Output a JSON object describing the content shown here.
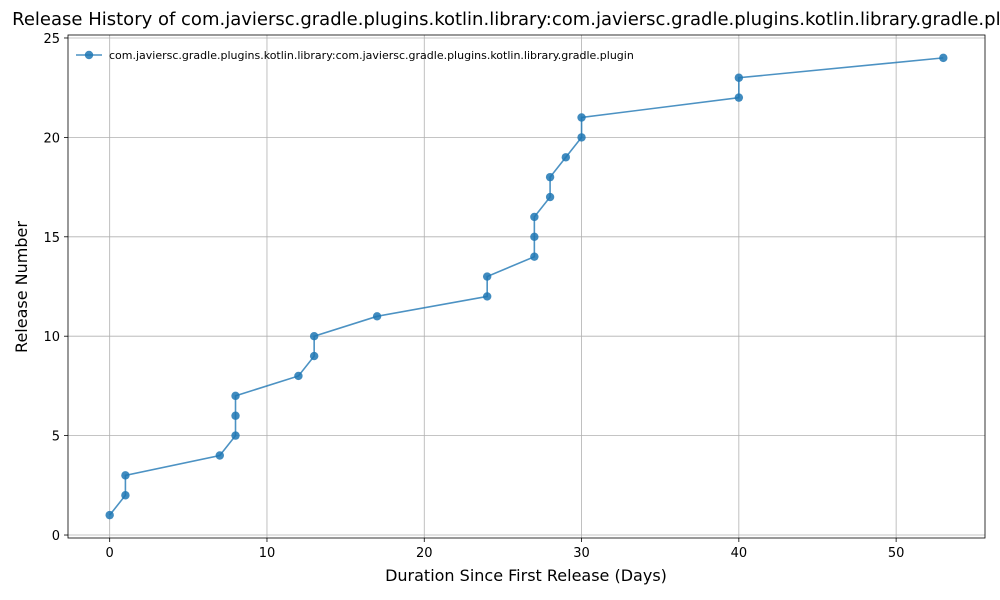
{
  "chart_data": {
    "type": "line",
    "title": "Release History of com.javiersc.gradle.plugins.kotlin.library:com.javiersc.gradle.plugins.kotlin.library.gradle.plugin",
    "xlabel": "Duration Since First Release (Days)",
    "ylabel": "Release Number",
    "xlim": [
      -2.65,
      55.65
    ],
    "ylim": [
      -0.15,
      25.15
    ],
    "xticks": [
      0,
      10,
      20,
      30,
      40,
      50
    ],
    "yticks": [
      0,
      5,
      10,
      15,
      20,
      25
    ],
    "grid": true,
    "legend_position": "top-left",
    "series": [
      {
        "name": "com.javiersc.gradle.plugins.kotlin.library:com.javiersc.gradle.plugins.kotlin.library.gradle.plugin",
        "color": "#1f77b4",
        "x": [
          0,
          1,
          1,
          7,
          8,
          8,
          8,
          12,
          13,
          13,
          17,
          24,
          24,
          27,
          27,
          27,
          28,
          28,
          29,
          30,
          30,
          40,
          40,
          53
        ],
        "y": [
          1,
          2,
          3,
          4,
          5,
          6,
          7,
          8,
          9,
          10,
          11,
          12,
          13,
          14,
          15,
          16,
          17,
          18,
          19,
          20,
          21,
          22,
          23,
          24
        ]
      }
    ]
  }
}
